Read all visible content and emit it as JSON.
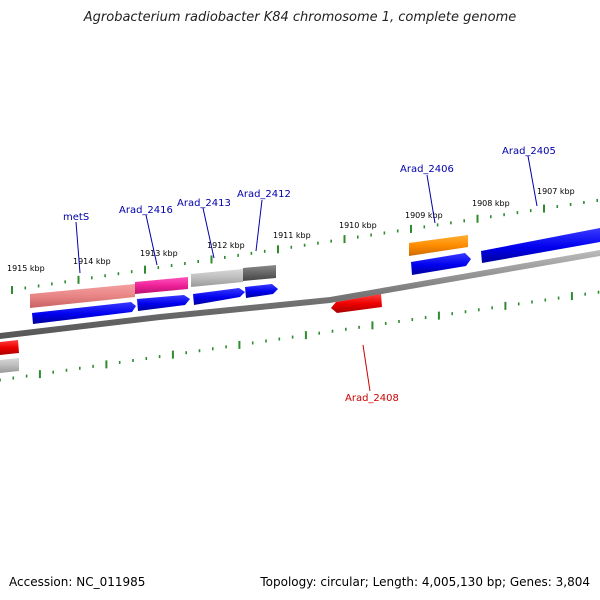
{
  "title": "Agrobacterium radiobacter K84 chromosome 1, complete genome",
  "footer": {
    "accession": "Accession: NC_011985",
    "summary": "Topology: circular; Length: 4,005,130 bp; Genes: 3,804"
  },
  "colors": {
    "tick_green": "#2e8b2e",
    "label_blue": "#0000aa",
    "label_red": "#cc0000",
    "backbone": "#777777"
  },
  "scale_labels": [
    "1915 kbp",
    "1914 kbp",
    "1913 kbp",
    "1912 kbp",
    "1911 kbp",
    "1910 kbp",
    "1909 kbp",
    "1908 kbp",
    "1907 kbp"
  ],
  "gene_labels": [
    {
      "text": "metS",
      "color": "blue"
    },
    {
      "text": "Arad_2416",
      "color": "blue"
    },
    {
      "text": "Arad_2413",
      "color": "blue"
    },
    {
      "text": "Arad_2412",
      "color": "blue"
    },
    {
      "text": "Arad_2406",
      "color": "blue"
    },
    {
      "text": "Arad_2405",
      "color": "blue"
    },
    {
      "text": "Arad_2408",
      "color": "red"
    }
  ]
}
